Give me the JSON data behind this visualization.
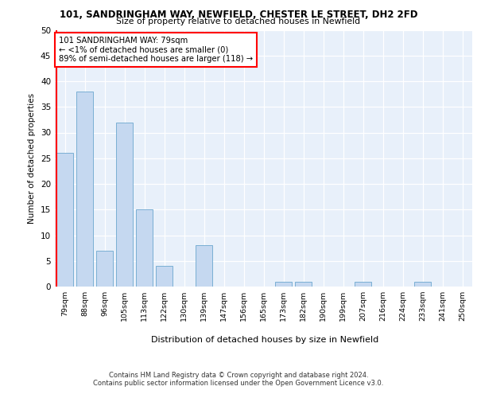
{
  "title1": "101, SANDRINGHAM WAY, NEWFIELD, CHESTER LE STREET, DH2 2FD",
  "title2": "Size of property relative to detached houses in Newfield",
  "xlabel": "Distribution of detached houses by size in Newfield",
  "ylabel": "Number of detached properties",
  "categories": [
    "79sqm",
    "88sqm",
    "96sqm",
    "105sqm",
    "113sqm",
    "122sqm",
    "130sqm",
    "139sqm",
    "147sqm",
    "156sqm",
    "165sqm",
    "173sqm",
    "182sqm",
    "190sqm",
    "199sqm",
    "207sqm",
    "216sqm",
    "224sqm",
    "233sqm",
    "241sqm",
    "250sqm"
  ],
  "values": [
    26,
    38,
    7,
    32,
    15,
    4,
    0,
    8,
    0,
    0,
    0,
    1,
    1,
    0,
    0,
    1,
    0,
    0,
    1,
    0,
    0
  ],
  "bar_color": "#c5d8f0",
  "bar_edge_color": "#7aafd4",
  "highlight_color": "#ff0000",
  "annotation_text": "101 SANDRINGHAM WAY: 79sqm\n← <1% of detached houses are smaller (0)\n89% of semi-detached houses are larger (118) →",
  "annotation_box_color": "white",
  "annotation_box_edge": "red",
  "ylim": [
    0,
    50
  ],
  "yticks": [
    0,
    5,
    10,
    15,
    20,
    25,
    30,
    35,
    40,
    45,
    50
  ],
  "footer1": "Contains HM Land Registry data © Crown copyright and database right 2024.",
  "footer2": "Contains public sector information licensed under the Open Government Licence v3.0.",
  "plot_bg_color": "#e8f0fa"
}
